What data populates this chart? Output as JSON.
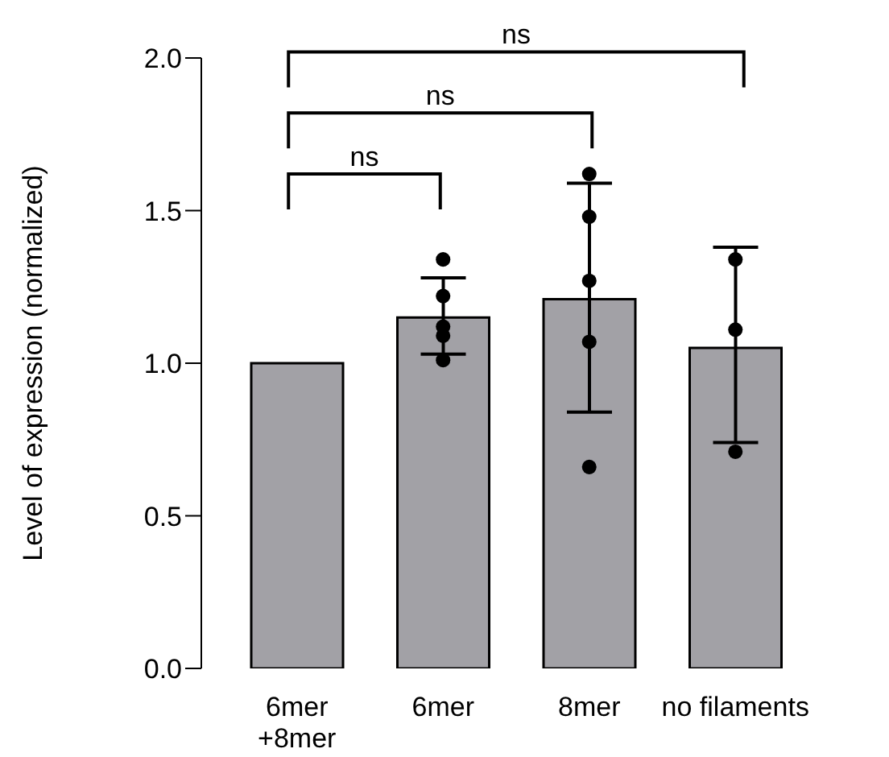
{
  "chart_data": {
    "type": "bar",
    "ylabel": "Level of expression (normalized)",
    "categories": [
      "6mer\n+8mer",
      "6mer",
      "8mer",
      "no filaments"
    ],
    "series": [
      {
        "color": "#a2a1a6",
        "values": [
          1.0,
          1.15,
          1.21,
          1.05
        ],
        "errors": [
          null,
          [
            1.03,
            1.28
          ],
          [
            0.84,
            1.59
          ],
          [
            0.74,
            1.38
          ]
        ]
      },
      {
        "type": "scatter",
        "color": "#000000",
        "x": [
          "6mer",
          "6mer",
          "6mer",
          "6mer",
          "6mer",
          "8mer",
          "8mer",
          "8mer",
          "8mer",
          "8mer",
          "no filaments",
          "no filaments",
          "no filaments"
        ],
        "values": [
          1.34,
          1.22,
          1.12,
          1.09,
          1.01,
          1.62,
          1.48,
          1.27,
          1.07,
          0.66,
          1.34,
          1.11,
          0.71
        ]
      }
    ],
    "ylim": [
      0,
      2.0
    ],
    "yticks": [
      {
        "value": 0,
        "label": "0.0"
      },
      {
        "value": 0.5,
        "label": "0.5"
      },
      {
        "value": 1.0,
        "label": "1.0"
      },
      {
        "value": 1.5,
        "label": "1.5"
      },
      {
        "value": 2.0,
        "label": "2.0"
      }
    ],
    "grid": false,
    "legend": false,
    "marker": "circle",
    "annotations": [
      "ns",
      "ns",
      "ns"
    ]
  }
}
